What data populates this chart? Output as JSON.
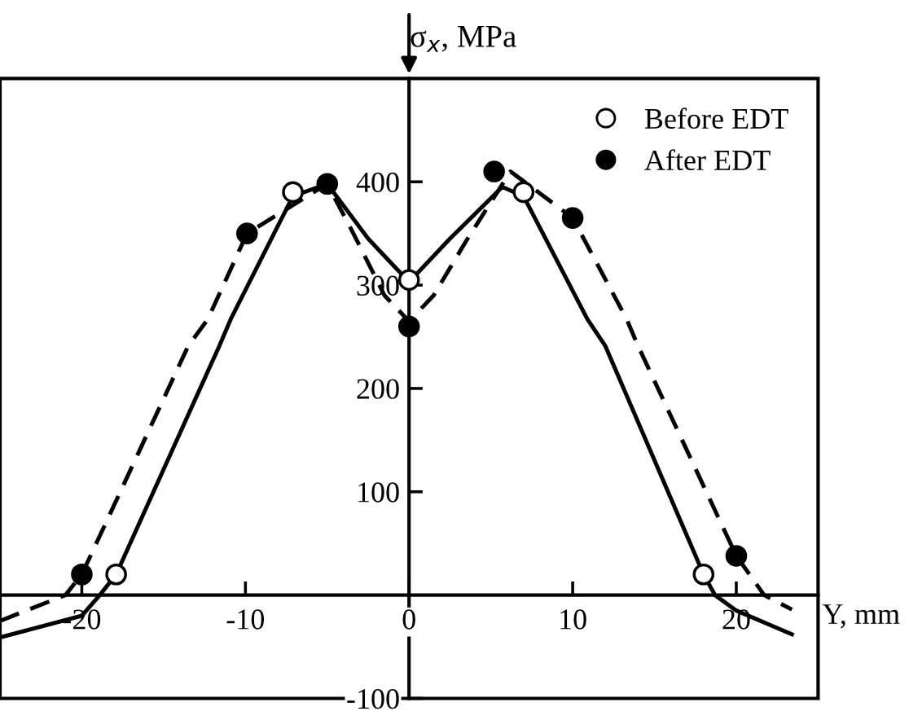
{
  "chart_data": {
    "type": "line",
    "ylabel": "σ$_{x}$, MPa",
    "xlabel": "Y, mm",
    "xlim": [
      -25,
      25
    ],
    "ylim": [
      -100,
      500
    ],
    "xticks": [
      -20,
      -10,
      0,
      10,
      20
    ],
    "yticks": [
      -100,
      100,
      200,
      300,
      400
    ],
    "grid": false,
    "legend": "top right",
    "marker": "circle",
    "series": [
      {
        "marker": "none",
        "color": "#000000",
        "line_style": "solid",
        "x": [
          -25,
          -20,
          -18.9,
          -17.9,
          -11.6,
          -10.9,
          -7.1,
          -5,
          -2.5,
          0,
          2.5,
          5.7,
          7,
          10.9,
          12,
          18,
          18.7,
          20,
          23.4
        ],
        "values": [
          -41,
          -20,
          0,
          20,
          241,
          267,
          386,
          398,
          345,
          303,
          345,
          395,
          386,
          267,
          241,
          20,
          0,
          -15,
          -38
        ]
      },
      {
        "marker": "none",
        "color": "#000000",
        "line_style": "dashed",
        "x": [
          -25,
          -21,
          -20,
          -13.5,
          -12.3,
          -9.9,
          -5,
          -3.5,
          -1.5,
          0,
          1.5,
          3.5,
          6.2,
          10,
          13.3,
          14,
          20,
          21.7,
          23.4
        ],
        "values": [
          -25,
          0,
          20,
          241,
          267,
          350,
          398,
          353,
          290,
          265,
          290,
          343,
          410,
          365,
          267,
          241,
          38,
          0,
          -14
        ]
      },
      {
        "type": "scatter",
        "name": "Before EDT",
        "color": "#ffffff",
        "x": [
          -17.9,
          -7.1,
          0,
          7,
          18
        ],
        "values": [
          20,
          390,
          305,
          390,
          20
        ]
      },
      {
        "type": "scatter",
        "name": "After EDT",
        "color": "#000000",
        "x": [
          -20,
          -9.9,
          -5,
          0,
          5.2,
          10,
          20
        ],
        "values": [
          20,
          350,
          398,
          260,
          410,
          365,
          38
        ]
      }
    ]
  }
}
